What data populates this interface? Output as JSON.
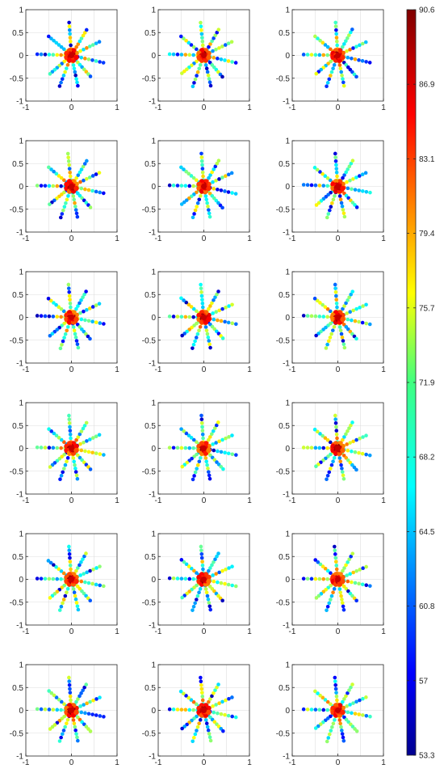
{
  "chart_data": {
    "type": "scatter",
    "layout": {
      "rows": 6,
      "cols": 3
    },
    "description_of_points": "Each panel shows 10 radial spokes of colored points emanating from the origin; color encodes value on the shared colorbar.",
    "xlim": [
      -1,
      1
    ],
    "ylim": [
      -1,
      1
    ],
    "xticks": [
      "-1",
      "0",
      "1"
    ],
    "yticks": [
      "1",
      "0.5",
      "0",
      "-0.5",
      "-1"
    ],
    "spokes": [
      {
        "angle_deg": 95,
        "length": 0.72
      },
      {
        "angle_deg": 60,
        "length": 0.65
      },
      {
        "angle_deg": 25,
        "length": 0.68
      },
      {
        "angle_deg": -12,
        "length": 0.72
      },
      {
        "angle_deg": -48,
        "length": 0.62
      },
      {
        "angle_deg": -78,
        "length": 0.68
      },
      {
        "angle_deg": -110,
        "length": 0.72
      },
      {
        "angle_deg": -140,
        "length": 0.62
      },
      {
        "angle_deg": 178,
        "length": 0.75
      },
      {
        "angle_deg": 140,
        "length": 0.65
      }
    ],
    "colorbar": {
      "min": 53.3,
      "max": 90.6,
      "ticks": [
        "90.6",
        "86.9",
        "83.1",
        "79.4",
        "75.7",
        "71.9",
        "68.2",
        "64.5",
        "60.8",
        "57",
        "53.3"
      ]
    }
  }
}
